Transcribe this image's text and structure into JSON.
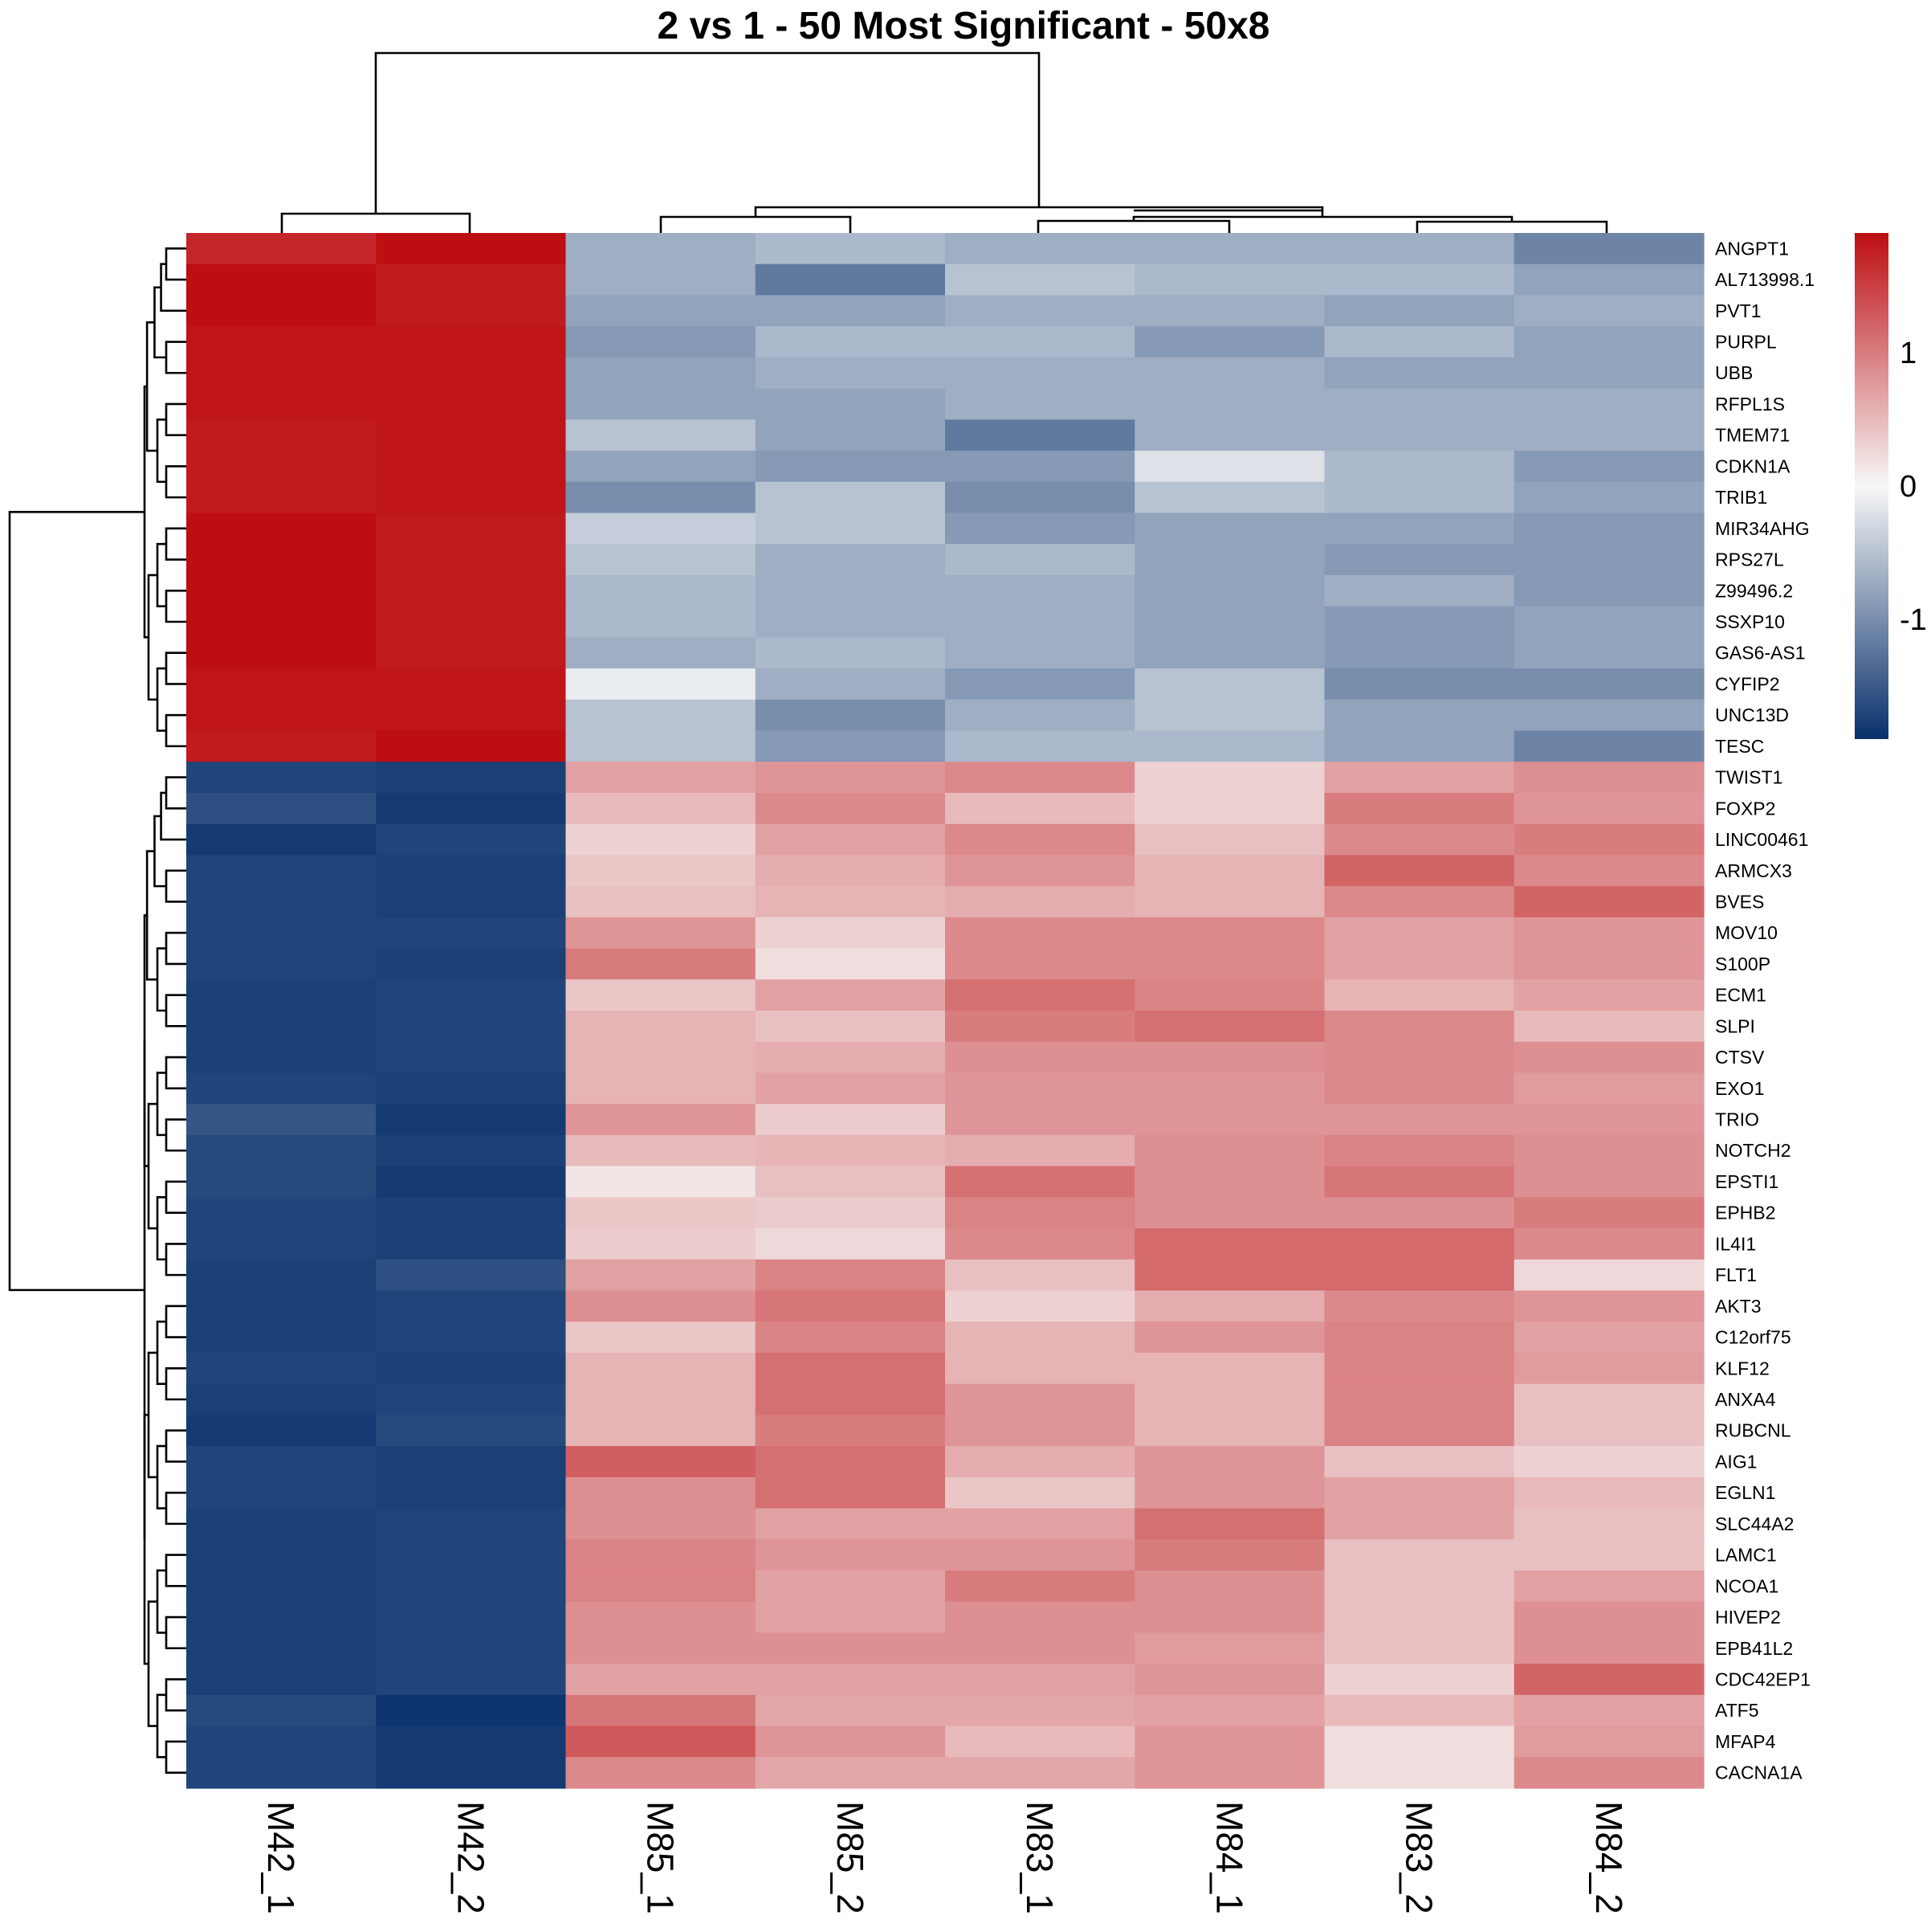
{
  "chart_data": {
    "type": "heatmap",
    "title": "2 vs 1 - 50 Most Significant - 50x8",
    "columns": [
      "M42_1",
      "M42_2",
      "M85_1",
      "M85_2",
      "M83_1",
      "M84_1",
      "M83_2",
      "M84_2"
    ],
    "rows": [
      "ANGPT1",
      "AL713998.1",
      "PVT1",
      "PURPL",
      "UBB",
      "RFPL1S",
      "TMEM71",
      "CDKN1A",
      "TRIB1",
      "MIR34AHG",
      "RPS27L",
      "Z99496.2",
      "SSXP10",
      "GAS6-AS1",
      "CYFIP2",
      "UNC13D",
      "TESC",
      "TWIST1",
      "FOXP2",
      "LINC00461",
      "ARMCX3",
      "BVES",
      "MOV10",
      "S100P",
      "ECM1",
      "SLPI",
      "CTSV",
      "EXO1",
      "TRIO",
      "NOTCH2",
      "EPSTI1",
      "EPHB2",
      "IL4I1",
      "FLT1",
      "AKT3",
      "C12orf75",
      "KLF12",
      "ANXA4",
      "RUBCNL",
      "AIG1",
      "EGLN1",
      "SLC44A2",
      "LAMC1",
      "NCOA1",
      "HIVEP2",
      "EPB41L2",
      "CDC42EP1",
      "ATF5",
      "MFAP4",
      "CACNA1A"
    ],
    "values": [
      [
        1.7,
        1.9,
        -0.7,
        -0.6,
        -0.7,
        -0.7,
        -0.7,
        -1.1
      ],
      [
        1.9,
        1.8,
        -0.7,
        -1.2,
        -0.5,
        -0.6,
        -0.6,
        -0.8
      ],
      [
        1.9,
        1.8,
        -0.8,
        -0.8,
        -0.7,
        -0.7,
        -0.8,
        -0.7
      ],
      [
        1.85,
        1.85,
        -0.9,
        -0.6,
        -0.6,
        -0.9,
        -0.6,
        -0.8
      ],
      [
        1.85,
        1.85,
        -0.8,
        -0.7,
        -0.7,
        -0.7,
        -0.8,
        -0.8
      ],
      [
        1.85,
        1.85,
        -0.8,
        -0.8,
        -0.7,
        -0.7,
        -0.7,
        -0.7
      ],
      [
        1.8,
        1.85,
        -0.5,
        -0.8,
        -1.2,
        -0.7,
        -0.7,
        -0.7
      ],
      [
        1.8,
        1.85,
        -0.8,
        -0.9,
        -0.9,
        -0.2,
        -0.6,
        -0.9
      ],
      [
        1.8,
        1.85,
        -1.0,
        -0.5,
        -1.0,
        -0.5,
        -0.6,
        -0.8
      ],
      [
        1.9,
        1.8,
        -0.4,
        -0.5,
        -0.9,
        -0.8,
        -0.8,
        -0.9
      ],
      [
        1.9,
        1.8,
        -0.5,
        -0.7,
        -0.6,
        -0.8,
        -0.9,
        -0.9
      ],
      [
        1.9,
        1.8,
        -0.6,
        -0.7,
        -0.7,
        -0.8,
        -0.7,
        -0.9
      ],
      [
        1.9,
        1.8,
        -0.6,
        -0.7,
        -0.7,
        -0.8,
        -0.9,
        -0.8
      ],
      [
        1.9,
        1.8,
        -0.7,
        -0.6,
        -0.7,
        -0.8,
        -0.9,
        -0.8
      ],
      [
        1.85,
        1.85,
        -0.1,
        -0.7,
        -0.9,
        -0.5,
        -1.0,
        -1.0
      ],
      [
        1.85,
        1.85,
        -0.5,
        -1.0,
        -0.7,
        -0.5,
        -0.8,
        -0.8
      ],
      [
        1.8,
        1.9,
        -0.5,
        -0.9,
        -0.6,
        -0.6,
        -0.8,
        -1.1
      ],
      [
        -1.7,
        -1.75,
        0.7,
        0.8,
        0.9,
        0.3,
        0.7,
        0.85
      ],
      [
        -1.6,
        -1.8,
        0.5,
        0.9,
        0.5,
        0.3,
        1.0,
        0.8
      ],
      [
        -1.8,
        -1.7,
        0.3,
        0.7,
        0.9,
        0.45,
        0.9,
        1.0
      ],
      [
        -1.7,
        -1.75,
        0.4,
        0.6,
        0.8,
        0.55,
        1.2,
        0.9
      ],
      [
        -1.7,
        -1.75,
        0.45,
        0.55,
        0.6,
        0.55,
        0.9,
        1.2
      ],
      [
        -1.7,
        -1.7,
        0.8,
        0.3,
        0.9,
        0.9,
        0.7,
        0.8
      ],
      [
        -1.7,
        -1.75,
        1.0,
        0.2,
        0.9,
        0.9,
        0.7,
        0.8
      ],
      [
        -1.75,
        -1.7,
        0.4,
        0.7,
        1.1,
        0.95,
        0.55,
        0.7
      ],
      [
        -1.75,
        -1.7,
        0.55,
        0.45,
        1.0,
        1.1,
        0.9,
        0.5
      ],
      [
        -1.75,
        -1.7,
        0.55,
        0.6,
        0.85,
        0.85,
        0.9,
        0.85
      ],
      [
        -1.7,
        -1.75,
        0.55,
        0.7,
        0.8,
        0.8,
        0.9,
        0.75
      ],
      [
        -1.55,
        -1.8,
        0.8,
        0.35,
        0.8,
        0.8,
        0.8,
        0.8
      ],
      [
        -1.65,
        -1.75,
        0.5,
        0.55,
        0.6,
        0.85,
        0.95,
        0.85
      ],
      [
        -1.65,
        -1.8,
        0.15,
        0.45,
        1.1,
        0.85,
        1.05,
        0.85
      ],
      [
        -1.7,
        -1.75,
        0.4,
        0.35,
        0.95,
        0.85,
        0.85,
        1.0
      ],
      [
        -1.7,
        -1.75,
        0.35,
        0.25,
        0.9,
        1.15,
        1.15,
        0.9
      ],
      [
        -1.75,
        -1.6,
        0.7,
        0.95,
        0.45,
        1.15,
        1.15,
        0.25
      ],
      [
        -1.75,
        -1.7,
        0.85,
        1.05,
        0.3,
        0.6,
        0.9,
        0.8
      ],
      [
        -1.75,
        -1.7,
        0.4,
        0.95,
        0.55,
        0.8,
        0.95,
        0.7
      ],
      [
        -1.7,
        -1.75,
        0.55,
        1.1,
        0.55,
        0.55,
        0.95,
        0.75
      ],
      [
        -1.75,
        -1.7,
        0.55,
        1.1,
        0.8,
        0.55,
        0.95,
        0.45
      ],
      [
        -1.8,
        -1.65,
        0.55,
        1.0,
        0.8,
        0.55,
        0.95,
        0.45
      ],
      [
        -1.7,
        -1.75,
        1.25,
        1.1,
        0.6,
        0.8,
        0.45,
        0.3
      ],
      [
        -1.7,
        -1.75,
        0.85,
        1.1,
        0.4,
        0.8,
        0.7,
        0.5
      ],
      [
        -1.75,
        -1.7,
        0.85,
        0.7,
        0.7,
        1.1,
        0.7,
        0.45
      ],
      [
        -1.75,
        -1.7,
        0.95,
        0.8,
        0.8,
        1.0,
        0.45,
        0.45
      ],
      [
        -1.75,
        -1.7,
        0.95,
        0.7,
        1.0,
        0.85,
        0.45,
        0.7
      ],
      [
        -1.75,
        -1.7,
        0.85,
        0.7,
        0.85,
        0.85,
        0.45,
        0.85
      ],
      [
        -1.75,
        -1.7,
        0.85,
        0.85,
        0.85,
        0.75,
        0.45,
        0.85
      ],
      [
        -1.75,
        -1.7,
        0.7,
        0.7,
        0.7,
        0.8,
        0.3,
        1.2
      ],
      [
        -1.65,
        -1.85,
        1.05,
        0.65,
        0.65,
        0.7,
        0.5,
        0.7
      ],
      [
        -1.7,
        -1.8,
        1.3,
        0.8,
        0.5,
        0.8,
        0.2,
        0.75
      ],
      [
        -1.7,
        -1.8,
        0.9,
        0.65,
        0.65,
        0.8,
        0.2,
        0.9
      ]
    ],
    "legend": {
      "ticks": [
        1,
        0,
        -1
      ],
      "range": [
        -1.9,
        1.9
      ],
      "colors": [
        "#08306b",
        "#f7f7f7",
        "#bd0e12"
      ],
      "placement": "right"
    },
    "dendrograms": {
      "rows": true,
      "columns": true
    }
  }
}
